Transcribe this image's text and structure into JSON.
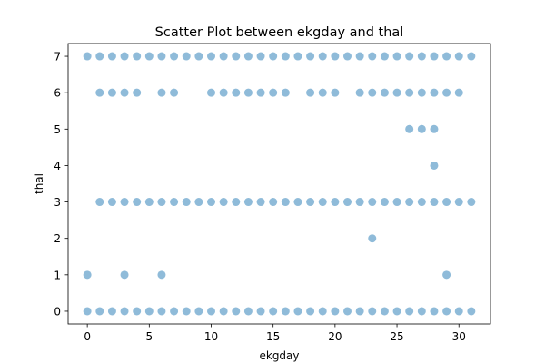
{
  "chart_data": {
    "type": "scatter",
    "title": "Scatter Plot between ekgday and thal",
    "xlabel": "ekgday",
    "ylabel": "thal",
    "xlim": [
      -1.55,
      32.55
    ],
    "ylim": [
      -0.35,
      7.35
    ],
    "xticks": [
      0,
      5,
      10,
      15,
      20,
      25,
      30
    ],
    "yticks": [
      0,
      1,
      2,
      3,
      4,
      5,
      6,
      7
    ],
    "grid": false,
    "marker_color": "#1f77b4",
    "marker_alpha": 0.5,
    "series": [
      {
        "points": [
          [
            0,
            7
          ],
          [
            1,
            7
          ],
          [
            2,
            7
          ],
          [
            3,
            7
          ],
          [
            4,
            7
          ],
          [
            5,
            7
          ],
          [
            6,
            7
          ],
          [
            7,
            7
          ],
          [
            8,
            7
          ],
          [
            9,
            7
          ],
          [
            10,
            7
          ],
          [
            11,
            7
          ],
          [
            12,
            7
          ],
          [
            13,
            7
          ],
          [
            14,
            7
          ],
          [
            15,
            7
          ],
          [
            16,
            7
          ],
          [
            17,
            7
          ],
          [
            18,
            7
          ],
          [
            19,
            7
          ],
          [
            20,
            7
          ],
          [
            21,
            7
          ],
          [
            22,
            7
          ],
          [
            23,
            7
          ],
          [
            24,
            7
          ],
          [
            25,
            7
          ],
          [
            26,
            7
          ],
          [
            27,
            7
          ],
          [
            28,
            7
          ],
          [
            29,
            7
          ],
          [
            30,
            7
          ],
          [
            31,
            7
          ],
          [
            1,
            6
          ],
          [
            2,
            6
          ],
          [
            3,
            6
          ],
          [
            4,
            6
          ],
          [
            6,
            6
          ],
          [
            7,
            6
          ],
          [
            10,
            6
          ],
          [
            11,
            6
          ],
          [
            12,
            6
          ],
          [
            13,
            6
          ],
          [
            14,
            6
          ],
          [
            15,
            6
          ],
          [
            16,
            6
          ],
          [
            18,
            6
          ],
          [
            19,
            6
          ],
          [
            20,
            6
          ],
          [
            22,
            6
          ],
          [
            23,
            6
          ],
          [
            24,
            6
          ],
          [
            25,
            6
          ],
          [
            26,
            6
          ],
          [
            27,
            6
          ],
          [
            28,
            6
          ],
          [
            29,
            6
          ],
          [
            30,
            6
          ],
          [
            26,
            5
          ],
          [
            27,
            5
          ],
          [
            28,
            5
          ],
          [
            28,
            4
          ],
          [
            1,
            3
          ],
          [
            2,
            3
          ],
          [
            3,
            3
          ],
          [
            4,
            3
          ],
          [
            5,
            3
          ],
          [
            6,
            3
          ],
          [
            7,
            3
          ],
          [
            8,
            3
          ],
          [
            9,
            3
          ],
          [
            10,
            3
          ],
          [
            11,
            3
          ],
          [
            12,
            3
          ],
          [
            13,
            3
          ],
          [
            14,
            3
          ],
          [
            15,
            3
          ],
          [
            16,
            3
          ],
          [
            17,
            3
          ],
          [
            18,
            3
          ],
          [
            19,
            3
          ],
          [
            20,
            3
          ],
          [
            21,
            3
          ],
          [
            22,
            3
          ],
          [
            23,
            3
          ],
          [
            24,
            3
          ],
          [
            25,
            3
          ],
          [
            26,
            3
          ],
          [
            27,
            3
          ],
          [
            28,
            3
          ],
          [
            29,
            3
          ],
          [
            30,
            3
          ],
          [
            31,
            3
          ],
          [
            23,
            2
          ],
          [
            0,
            1
          ],
          [
            3,
            1
          ],
          [
            6,
            1
          ],
          [
            29,
            1
          ],
          [
            0,
            0
          ],
          [
            1,
            0
          ],
          [
            2,
            0
          ],
          [
            3,
            0
          ],
          [
            4,
            0
          ],
          [
            5,
            0
          ],
          [
            6,
            0
          ],
          [
            7,
            0
          ],
          [
            8,
            0
          ],
          [
            9,
            0
          ],
          [
            10,
            0
          ],
          [
            11,
            0
          ],
          [
            12,
            0
          ],
          [
            13,
            0
          ],
          [
            14,
            0
          ],
          [
            15,
            0
          ],
          [
            16,
            0
          ],
          [
            17,
            0
          ],
          [
            18,
            0
          ],
          [
            19,
            0
          ],
          [
            20,
            0
          ],
          [
            21,
            0
          ],
          [
            22,
            0
          ],
          [
            23,
            0
          ],
          [
            24,
            0
          ],
          [
            25,
            0
          ],
          [
            26,
            0
          ],
          [
            27,
            0
          ],
          [
            28,
            0
          ],
          [
            29,
            0
          ],
          [
            30,
            0
          ],
          [
            31,
            0
          ]
        ]
      }
    ]
  }
}
